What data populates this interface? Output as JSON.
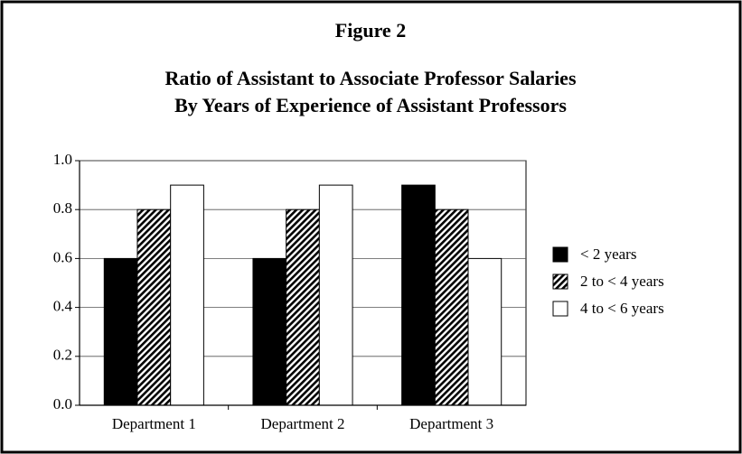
{
  "chart_data": {
    "type": "bar",
    "title": "Figure 2",
    "subtitle": [
      "Ratio of Assistant to Associate Professor Salaries",
      "By Years of Experience of Assistant Professors"
    ],
    "categories": [
      "Department 1",
      "Department 2",
      "Department 3"
    ],
    "series": [
      {
        "name": "< 2 years",
        "color": "#000000",
        "pattern": "solid",
        "values": [
          0.6,
          0.6,
          0.9
        ]
      },
      {
        "name": "2 to < 4 years",
        "color": "#000000",
        "pattern": "hatch",
        "values": [
          0.8,
          0.8,
          0.8
        ]
      },
      {
        "name": "4 to < 6 years",
        "color": "#ffffff",
        "pattern": "solid",
        "values": [
          0.9,
          0.9,
          0.6
        ]
      }
    ],
    "ylim": [
      0,
      1
    ],
    "yticks": [
      {
        "value": 0,
        "label": "0.0"
      },
      0.2,
      0.4,
      0.6,
      0.8,
      {
        "value": 1,
        "label": "1.0"
      }
    ],
    "grid": true,
    "legend": "right"
  }
}
